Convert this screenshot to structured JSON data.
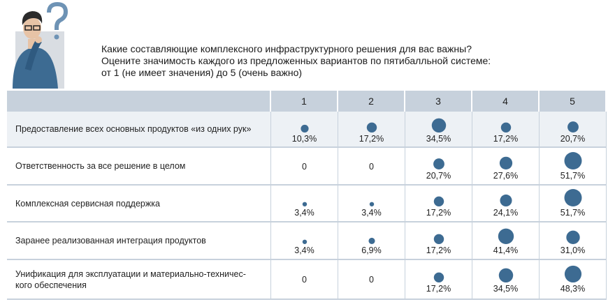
{
  "chart_data": {
    "type": "bubble_table",
    "title": [
      "Какие составляющие комплексного инфраструктурного решения для вас важны?",
      "Оцените значимость каждого из предложенных вариантов по пятибалльной системе:",
      "от 1 (не имеет значения) до 5 (очень важно)"
    ],
    "columns": [
      "1",
      "2",
      "3",
      "4",
      "5"
    ],
    "color": "#3d6b92",
    "rows": [
      {
        "name": "Предоставление всех основных продуктов «из одних рук»",
        "values": [
          10.3,
          17.2,
          34.5,
          17.2,
          20.7
        ],
        "value_labels": [
          "10,3%",
          "17,2%",
          "34,5%",
          "17,2%",
          "20,7%"
        ]
      },
      {
        "name": "Ответственность за все решение в целом",
        "values": [
          0,
          0,
          20.7,
          27.6,
          51.7
        ],
        "value_labels": [
          "0",
          "0",
          "20,7%",
          "27,6%",
          "51,7%"
        ]
      },
      {
        "name": "Комплексная сервисная поддержка",
        "values": [
          3.4,
          3.4,
          17.2,
          24.1,
          51.7
        ],
        "value_labels": [
          "3,4%",
          "3,4%",
          "17,2%",
          "24,1%",
          "51,7%"
        ]
      },
      {
        "name": "Заранее реализованная интеграция продуктов",
        "values": [
          3.4,
          6.9,
          17.2,
          41.4,
          31.0
        ],
        "value_labels": [
          "3,4%",
          "6,9%",
          "17,2%",
          "41,4%",
          "31,0%"
        ]
      },
      {
        "name": "Унификация для эксплуатации и материально-техничес-\nкого обеспечения",
        "values": [
          0,
          0,
          17.2,
          34.5,
          48.3
        ],
        "value_labels": [
          "0",
          "0",
          "17,2%",
          "34,5%",
          "48,3%"
        ]
      }
    ]
  }
}
